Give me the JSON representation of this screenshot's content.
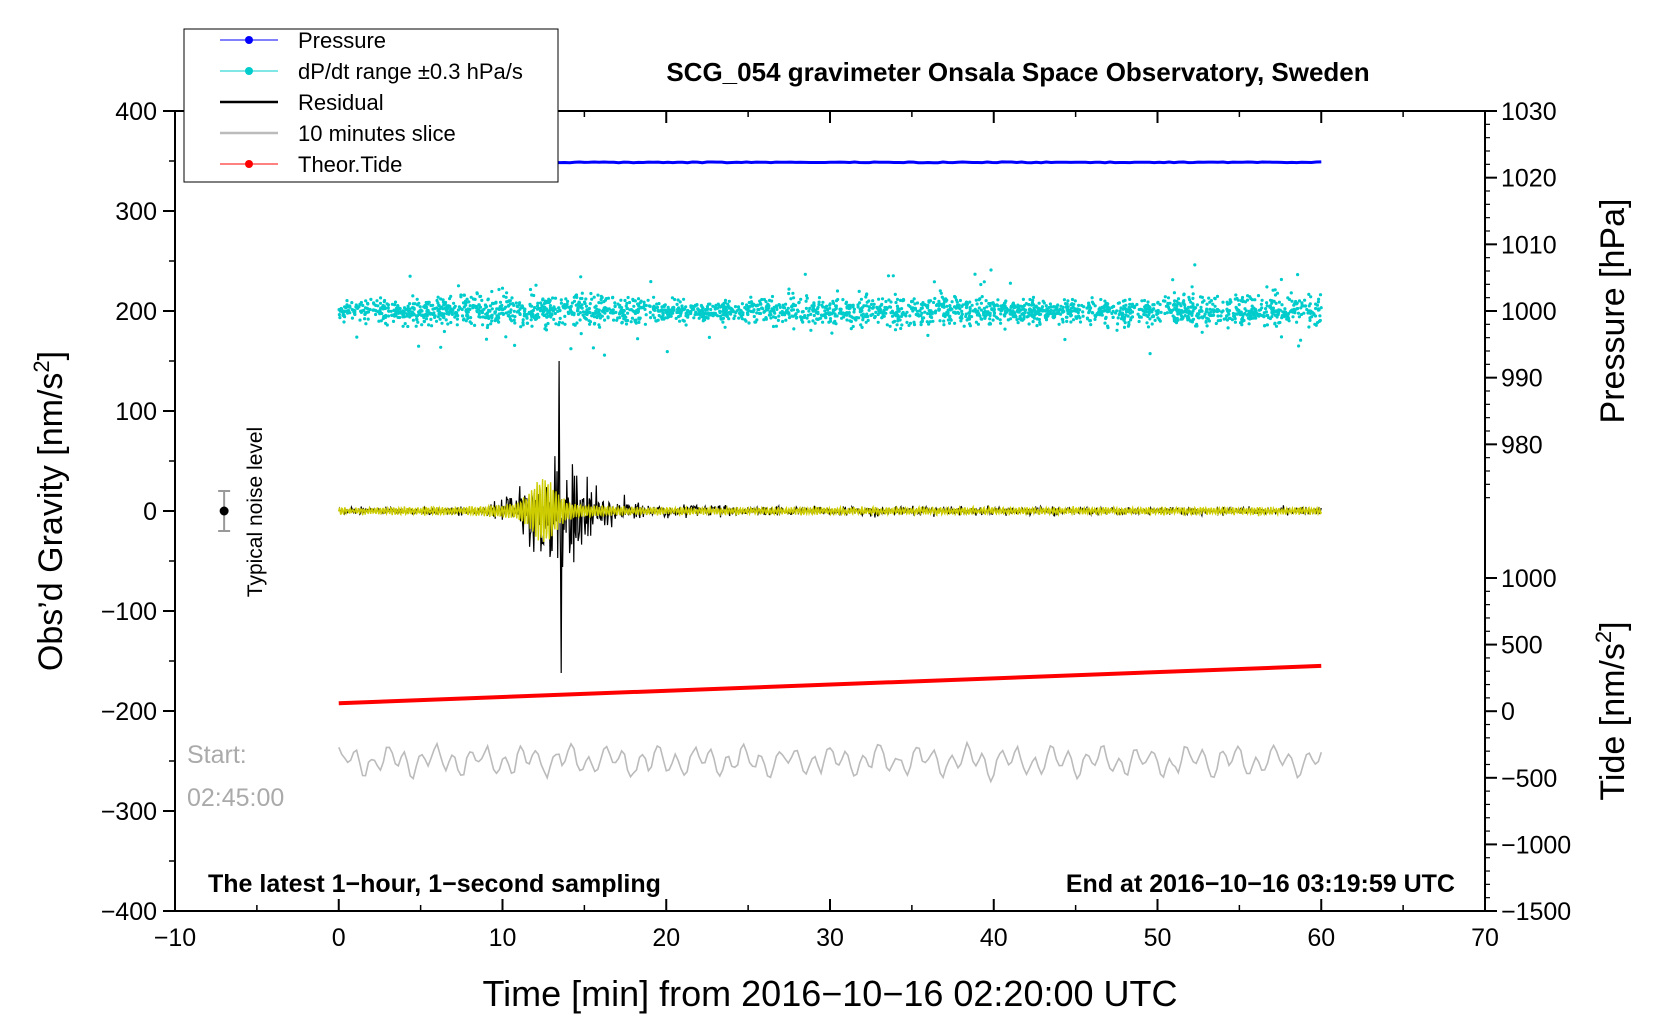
{
  "chart_data": {
    "type": "line",
    "title": "SCG_054 gravimeter Onsala Space Observatory, Sweden",
    "xlabel": "Time [min] from 2016−10−16 02:20:00 UTC",
    "ylabel_left": "Obs’d Gravity [nm/s",
    "ylabel_left_sup": "2",
    "ylabel_left_end": "]",
    "ylabel_pressure": "Pressure [hPa]",
    "ylabel_tide": "Tide [nm/s",
    "ylabel_tide_sup": "2",
    "ylabel_tide_end": "]",
    "xlim": [
      -10,
      70
    ],
    "ylim": [
      -400,
      400
    ],
    "pressure_lim": [
      970,
      1030
    ],
    "tide_lim": [
      -1500,
      1000
    ],
    "x_ticks": [
      {
        "v": -10,
        "label": "−10"
      },
      {
        "v": 0,
        "label": "0"
      },
      {
        "v": 10,
        "label": "10"
      },
      {
        "v": 20,
        "label": "20"
      },
      {
        "v": 30,
        "label": "30"
      },
      {
        "v": 40,
        "label": "40"
      },
      {
        "v": 50,
        "label": "50"
      },
      {
        "v": 60,
        "label": "60"
      },
      {
        "v": 70,
        "label": "70"
      }
    ],
    "y_ticks": [
      {
        "v": 400,
        "label": "400"
      },
      {
        "v": 300,
        "label": "300"
      },
      {
        "v": 200,
        "label": "200"
      },
      {
        "v": 100,
        "label": "100"
      },
      {
        "v": 0,
        "label": "0"
      },
      {
        "v": -100,
        "label": "−100"
      },
      {
        "v": -200,
        "label": "−200"
      },
      {
        "v": -300,
        "label": "−300"
      },
      {
        "v": -400,
        "label": "−400"
      }
    ],
    "pressure_ticks": [
      {
        "v": 1030,
        "label": "1030"
      },
      {
        "v": 1020,
        "label": "1020"
      },
      {
        "v": 1010,
        "label": "1010"
      },
      {
        "v": 1000,
        "label": "1000"
      },
      {
        "v": 990,
        "label": "990"
      },
      {
        "v": 980,
        "label": "980"
      }
    ],
    "tide_ticks": [
      {
        "v": 1000,
        "label": "1000"
      },
      {
        "v": 500,
        "label": "500"
      },
      {
        "v": 0,
        "label": "0"
      },
      {
        "v": -500,
        "label": "−500"
      },
      {
        "v": -1000,
        "label": "−1000"
      },
      {
        "v": -1500,
        "label": "−1500"
      }
    ],
    "legend": [
      {
        "name": "Pressure",
        "color": "#0000ff",
        "marker": true
      },
      {
        "name": "dP/dt range ±0.3 hPa/s",
        "color": "#00cccc",
        "marker": true
      },
      {
        "name": "Residual",
        "color": "#000000",
        "marker": false
      },
      {
        "name": "10 minutes slice",
        "color": "#bbbbbb",
        "marker": false
      },
      {
        "name": "Theor.Tide",
        "color": "#ff0000",
        "marker": true
      }
    ],
    "series": [
      {
        "name": "Pressure",
        "axis": "pressure",
        "color": "#0000ff",
        "x_range": [
          0,
          60
        ],
        "level": 1022.3
      },
      {
        "name": "dP/dt range ±0.3 hPa/s",
        "axis": "pressure",
        "color": "#00cccc",
        "x_range": [
          0,
          60
        ],
        "center": 1000,
        "spread": 2,
        "outlier_max": 7
      },
      {
        "name": "Residual",
        "axis": "gravity",
        "color": "#000000",
        "x_range": [
          0,
          60
        ],
        "baseline": 0,
        "noise": 6,
        "event_start_min": 9,
        "event_peak_min": 13.5,
        "event_max": 150,
        "event_min": -162
      },
      {
        "name": "filtered residual",
        "axis": "gravity",
        "color": "#cccc00",
        "x_range": [
          0,
          60
        ],
        "peak_min": 12.5,
        "peak_amp": 25
      },
      {
        "name": "10 minutes slice",
        "axis": "gravity",
        "color": "#bbbbbb",
        "x_range": [
          0,
          60
        ],
        "center": -250,
        "amp": 15
      },
      {
        "name": "Theor.Tide",
        "axis": "tide",
        "color": "#ff0000",
        "x_range": [
          0,
          60
        ],
        "start": 60,
        "end": 340
      }
    ],
    "annotations": {
      "noise_label": "Typical noise level",
      "noise_x": -7,
      "noise_center": 0,
      "noise_halfwidth": 20,
      "start_label": "Start:",
      "start_time": "02:45:00",
      "bottom_left": "The latest 1−hour, 1−second sampling",
      "bottom_right": "End at 2016−10−16 03:19:59 UTC"
    }
  }
}
